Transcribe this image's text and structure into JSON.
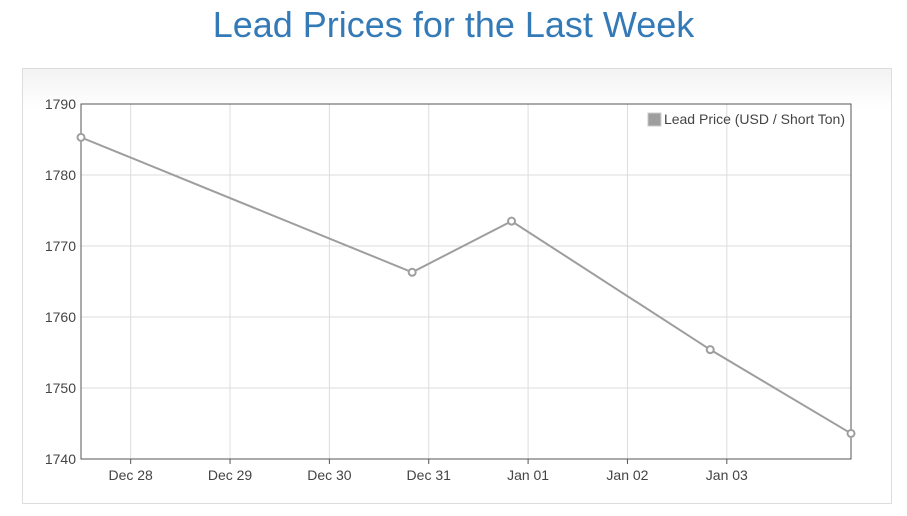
{
  "title": "Lead Prices for the Last Week",
  "chart_data": {
    "type": "line",
    "x_tick_labels": [
      "Dec 28",
      "Dec 29",
      "Dec 30",
      "Dec 31",
      "Jan 01",
      "Jan 02",
      "Jan 03"
    ],
    "xlim": [
      "Dec 27 12:00",
      "Jan 04 06:00"
    ],
    "y_tick_labels": [
      "1790",
      "1780",
      "1770",
      "1760",
      "1750",
      "1740"
    ],
    "ylim": [
      1740,
      1790
    ],
    "grid": true,
    "legend_position": "top-right",
    "series": [
      {
        "name": "Lead Price (USD / Short Ton)",
        "color": "#9e9e9e",
        "points": [
          {
            "x": "Dec 27 12:00",
            "y": 1785.3
          },
          {
            "x": "Dec 30 20:00",
            "y": 1766.3
          },
          {
            "x": "Dec 31 20:00",
            "y": 1773.5
          },
          {
            "x": "Jan 02 20:00",
            "y": 1755.4
          },
          {
            "x": "Jan 04 06:00",
            "y": 1743.6
          }
        ]
      }
    ]
  }
}
